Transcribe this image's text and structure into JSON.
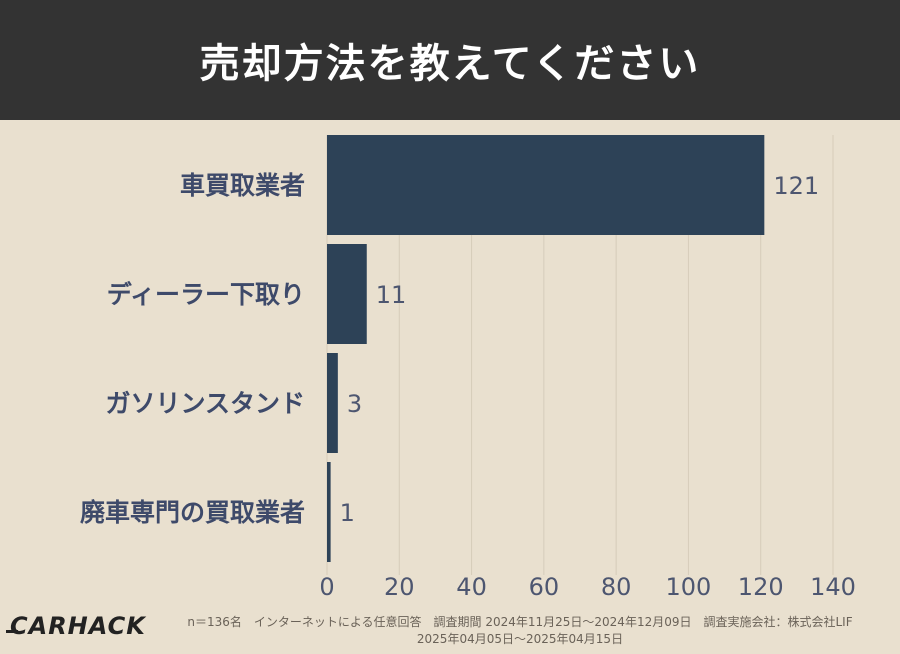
{
  "header": {
    "title": "売却方法を教えてください"
  },
  "chart_data": {
    "type": "bar",
    "orientation": "horizontal",
    "title": "売却方法を教えてください",
    "categories": [
      "車買取業者",
      "ディーラー下取り",
      "ガソリンスタンド",
      "廃車専門の買取業者"
    ],
    "values": [
      121,
      11,
      3,
      1
    ],
    "xlim": [
      0,
      140
    ],
    "xticks": [
      0,
      20,
      40,
      60,
      80,
      100,
      120,
      140
    ],
    "grid": true,
    "bar_color": "#2d4257",
    "label_color": "#3e4a6a"
  },
  "footer": {
    "line1": "n＝136名　インターネットによる任意回答　調査期間 2024年11月25日〜2024年12月09日　調査実施会社：株式会社LIF",
    "line2": "2025年04月05日〜2025年04月15日"
  },
  "logo": {
    "text": "CARHACK"
  }
}
